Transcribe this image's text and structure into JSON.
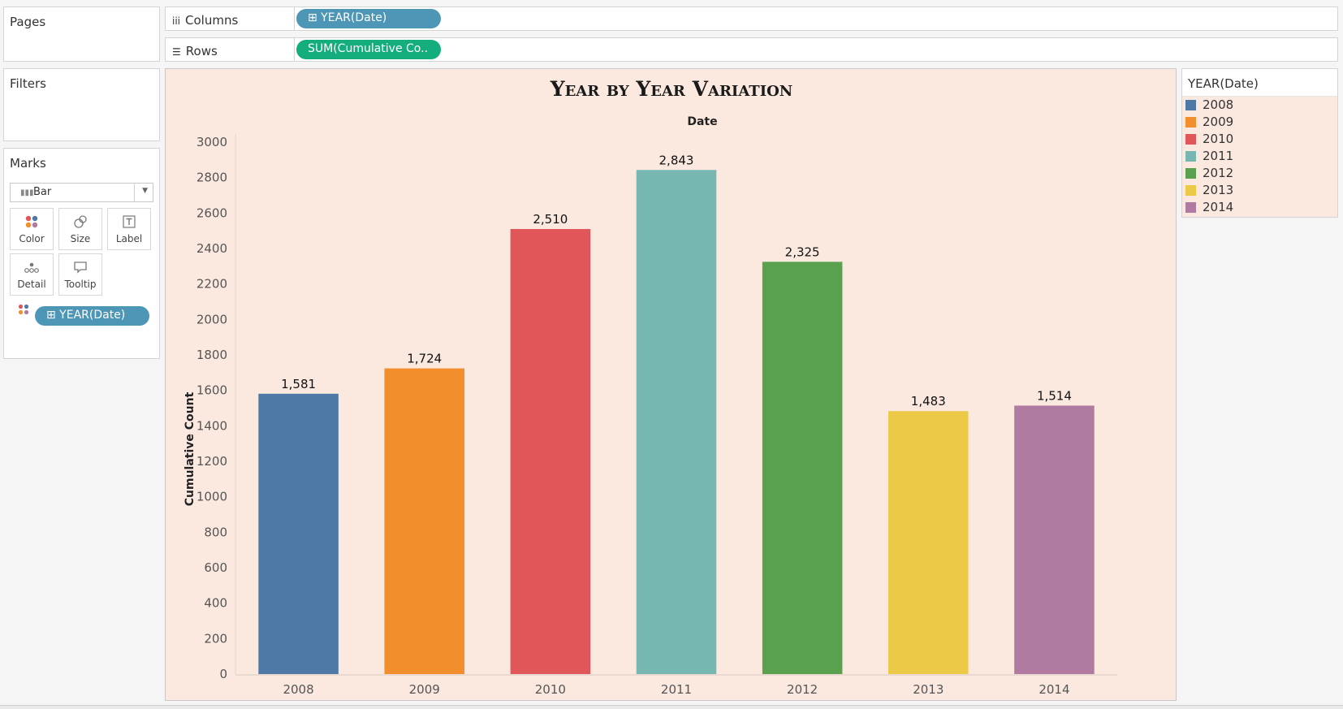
{
  "pages": {
    "title": "Pages"
  },
  "filters": {
    "title": "Filters"
  },
  "marks": {
    "title": "Marks",
    "type_label": "Bar",
    "buttons": {
      "color": "Color",
      "size": "Size",
      "label": "Label",
      "detail": "Detail",
      "tooltip": "Tooltip"
    },
    "color_pill": "⊞ YEAR(Date)"
  },
  "shelves": {
    "columns_label": "Columns",
    "columns_pill": "⊞ YEAR(Date)",
    "rows_label": "Rows",
    "rows_pill": "SUM(Cumulative Co.."
  },
  "legend": {
    "title": "YEAR(Date)",
    "items": [
      {
        "label": "2008",
        "color": "#4e79a7"
      },
      {
        "label": "2009",
        "color": "#f28e2b"
      },
      {
        "label": "2010",
        "color": "#e15759"
      },
      {
        "label": "2011",
        "color": "#76b7b2"
      },
      {
        "label": "2012",
        "color": "#59a14f"
      },
      {
        "label": "2013",
        "color": "#edc948"
      },
      {
        "label": "2014",
        "color": "#b07aa1"
      }
    ]
  },
  "chart_data": {
    "type": "bar",
    "title": "Year by Year Variation",
    "xlabel": "Date",
    "ylabel": "Cumulative Count",
    "categories": [
      "2008",
      "2009",
      "2010",
      "2011",
      "2012",
      "2013",
      "2014"
    ],
    "values": [
      1581,
      1724,
      2510,
      2843,
      2325,
      1483,
      1514
    ],
    "data_labels": [
      "1,581",
      "1,724",
      "2,510",
      "2,843",
      "2,325",
      "1,483",
      "1,514"
    ],
    "colors": [
      "#4e79a7",
      "#f28e2b",
      "#e15759",
      "#76b7b2",
      "#59a14f",
      "#edc948",
      "#b07aa1"
    ],
    "yticks": [
      0,
      200,
      400,
      600,
      800,
      1000,
      1200,
      1400,
      1600,
      1800,
      2000,
      2200,
      2400,
      2600,
      2800,
      3000
    ],
    "ylim": [
      0,
      3000
    ],
    "grid": false,
    "legend_position": "right"
  }
}
